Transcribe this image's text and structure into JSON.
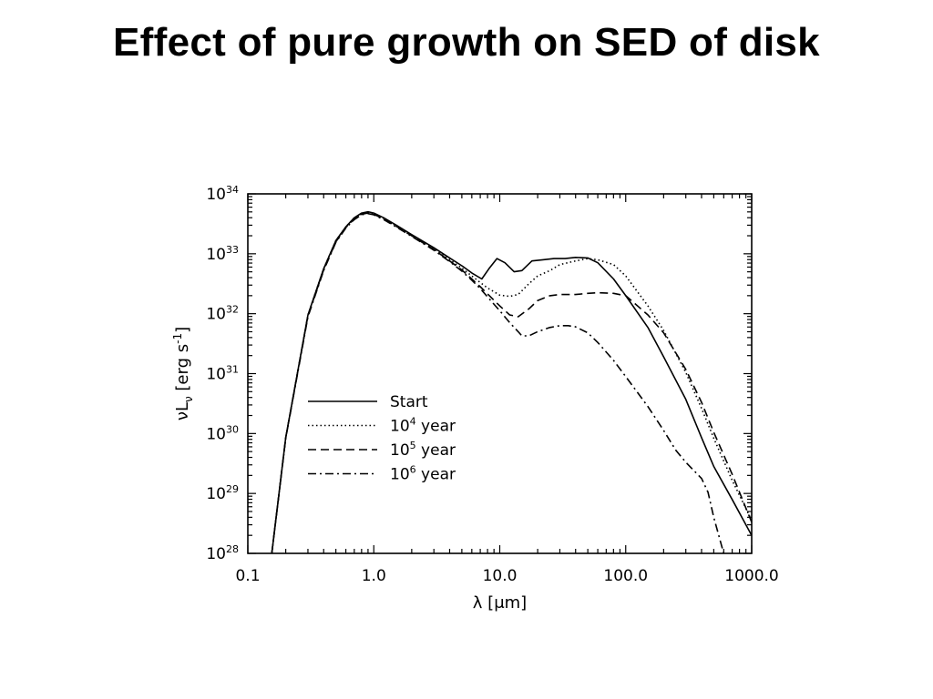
{
  "slide": {
    "title": "Effect of pure growth on SED of disk"
  },
  "chart_data": {
    "type": "line",
    "title": "",
    "xlabel": "λ [μm]",
    "ylabel": "νL_ν [erg s^-1]",
    "xscale": "log",
    "yscale": "log",
    "xlim": [
      0.1,
      1000.0
    ],
    "ylim": [
      1e+28,
      1e+34
    ],
    "x_ticks": [
      0.1,
      1.0,
      10.0,
      100.0,
      1000.0
    ],
    "x_tick_labels": [
      "0.1",
      "1.0",
      "10.0",
      "100.0",
      "1000.0"
    ],
    "y_ticks": [
      28,
      29,
      30,
      31,
      32,
      33,
      34
    ],
    "y_tick_labels": [
      {
        "base": "10",
        "exp": "28"
      },
      {
        "base": "10",
        "exp": "29"
      },
      {
        "base": "10",
        "exp": "30"
      },
      {
        "base": "10",
        "exp": "31"
      },
      {
        "base": "10",
        "exp": "32"
      },
      {
        "base": "10",
        "exp": "33"
      },
      {
        "base": "10",
        "exp": "34"
      }
    ],
    "legend_position": "middle-left",
    "grid": false,
    "series": [
      {
        "name": "Start",
        "legend": {
          "main": "Start",
          "exp": "",
          "suffix": ""
        },
        "dash": "solid",
        "x_um": [
          0.155,
          0.2,
          0.3,
          0.4,
          0.5,
          0.6,
          0.7,
          0.8,
          0.9,
          1.0,
          1.2,
          1.5,
          2,
          3,
          4,
          5,
          6,
          7.2,
          8.2,
          9.5,
          11,
          13,
          15,
          18,
          22,
          27,
          33,
          40,
          50,
          60,
          80,
          100,
          150,
          200,
          300,
          400,
          500,
          700,
          1000
        ],
        "log_y": [
          28.0,
          29.93,
          31.98,
          32.75,
          33.22,
          33.45,
          33.6,
          33.68,
          33.7,
          33.68,
          33.6,
          33.48,
          33.32,
          33.1,
          32.93,
          32.8,
          32.68,
          32.58,
          32.75,
          32.92,
          32.85,
          32.7,
          32.72,
          32.88,
          32.9,
          32.92,
          32.92,
          32.94,
          32.93,
          32.85,
          32.58,
          32.3,
          31.77,
          31.28,
          30.57,
          29.93,
          29.45,
          28.9,
          28.3
        ]
      },
      {
        "name": "10^4 year",
        "legend": {
          "main": "10",
          "exp": "4",
          "suffix": " year"
        },
        "dash": "dotted",
        "x_um": [
          0.155,
          0.2,
          0.3,
          0.4,
          0.5,
          0.6,
          0.7,
          0.8,
          0.9,
          1.0,
          1.2,
          1.5,
          2,
          3,
          4,
          5,
          6,
          7,
          8,
          10,
          12,
          14,
          17,
          20,
          25,
          30,
          40,
          50,
          60,
          80,
          100,
          150,
          200,
          300,
          400,
          500,
          700,
          1000
        ],
        "log_y": [
          28.0,
          29.93,
          31.98,
          32.75,
          33.22,
          33.45,
          33.6,
          33.67,
          33.69,
          33.67,
          33.59,
          33.47,
          33.31,
          33.08,
          32.9,
          32.76,
          32.63,
          32.52,
          32.43,
          32.31,
          32.29,
          32.32,
          32.5,
          32.63,
          32.72,
          32.82,
          32.88,
          32.92,
          32.9,
          32.82,
          32.63,
          32.13,
          31.72,
          31.02,
          30.42,
          29.92,
          29.22,
          28.55
        ]
      },
      {
        "name": "10^5 year",
        "legend": {
          "main": "10",
          "exp": "5",
          "suffix": " year"
        },
        "dash": "dashed",
        "x_um": [
          0.155,
          0.2,
          0.3,
          0.4,
          0.5,
          0.6,
          0.7,
          0.8,
          0.9,
          1.0,
          1.2,
          1.5,
          2,
          3,
          4,
          5,
          6,
          7,
          8,
          10,
          12,
          14,
          17,
          20,
          25,
          30,
          40,
          50,
          60,
          80,
          100,
          150,
          200,
          300,
          400,
          500,
          700,
          1000
        ],
        "log_y": [
          28.0,
          29.93,
          31.97,
          32.73,
          33.2,
          33.44,
          33.58,
          33.66,
          33.68,
          33.66,
          33.58,
          33.46,
          33.3,
          33.07,
          32.88,
          32.73,
          32.58,
          32.45,
          32.33,
          32.13,
          31.98,
          31.95,
          32.08,
          32.22,
          32.3,
          32.32,
          32.32,
          32.34,
          32.35,
          32.34,
          32.3,
          31.98,
          31.68,
          31.07,
          30.52,
          30.02,
          29.32,
          28.52
        ]
      },
      {
        "name": "10^6 year",
        "legend": {
          "main": "10",
          "exp": "6",
          "suffix": " year"
        },
        "dash": "dashdot",
        "x_um": [
          0.155,
          0.2,
          0.3,
          0.4,
          0.5,
          0.6,
          0.7,
          0.8,
          0.9,
          1.0,
          1.2,
          1.5,
          2,
          3,
          4,
          5,
          6,
          7,
          8,
          10,
          12,
          14,
          15,
          17,
          20,
          25,
          30,
          35,
          40,
          50,
          60,
          80,
          100,
          150,
          200,
          250,
          300,
          400,
          450,
          500,
          600
        ],
        "log_y": [
          28.0,
          29.92,
          31.95,
          32.72,
          33.19,
          33.43,
          33.57,
          33.65,
          33.67,
          33.65,
          33.57,
          33.45,
          33.29,
          33.06,
          32.87,
          32.71,
          32.56,
          32.42,
          32.28,
          32.05,
          31.85,
          31.7,
          31.63,
          31.63,
          31.7,
          31.77,
          31.8,
          31.8,
          31.78,
          31.68,
          31.52,
          31.22,
          30.95,
          30.45,
          30.05,
          29.72,
          29.52,
          29.25,
          29.02,
          28.6,
          28.0
        ]
      }
    ]
  }
}
